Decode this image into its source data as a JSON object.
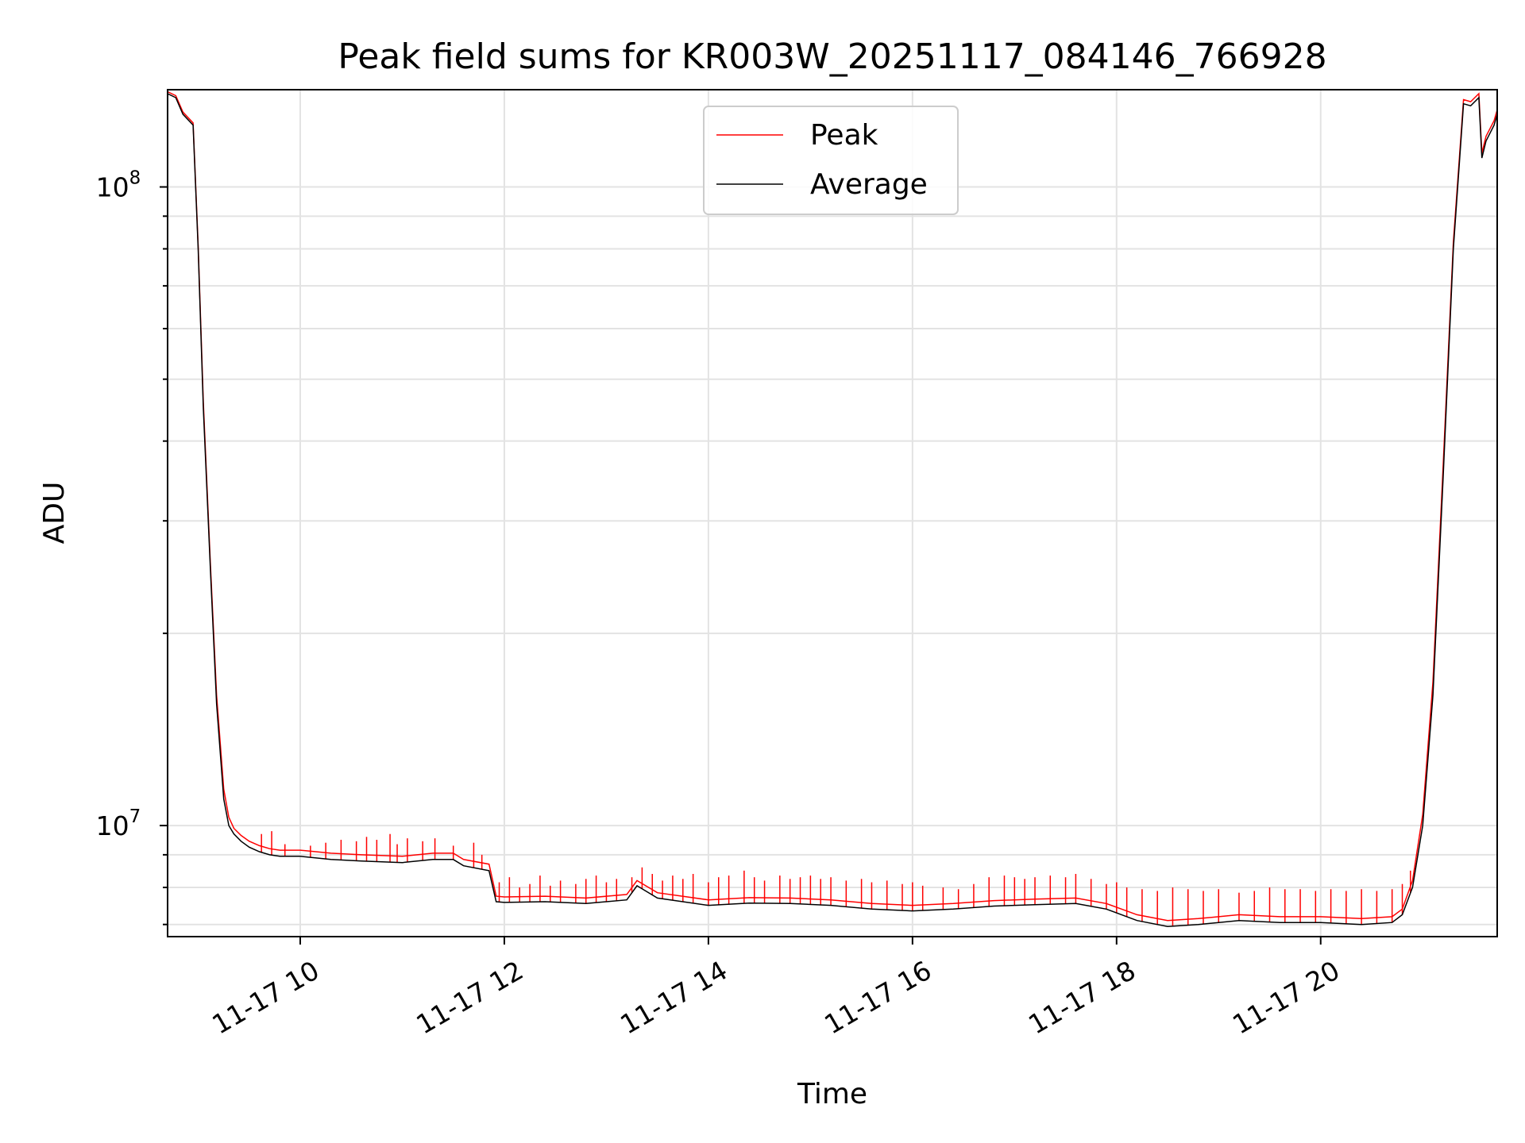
{
  "chart_data": {
    "type": "line",
    "title": "Peak field sums for KR003W_20251117_084146_766928",
    "xlabel": "Time",
    "ylabel": "ADU",
    "yscale": "log",
    "grid": true,
    "xlim": [
      8.7,
      21.73
    ],
    "ylim": [
      6700000,
      142000000
    ],
    "x_ticks": [
      {
        "value": 10,
        "label": "11-17 10"
      },
      {
        "value": 12,
        "label": "11-17 12"
      },
      {
        "value": 14,
        "label": "11-17 14"
      },
      {
        "value": 16,
        "label": "11-17 16"
      },
      {
        "value": 18,
        "label": "11-17 18"
      },
      {
        "value": 20,
        "label": "11-17 20"
      }
    ],
    "y_major_ticks": [
      {
        "value": 10000000,
        "base": "10",
        "exp": "7"
      },
      {
        "value": 100000000,
        "base": "10",
        "exp": "8"
      }
    ],
    "y_minor_ticks": [
      7000000,
      8000000,
      9000000,
      20000000,
      30000000,
      40000000,
      50000000,
      60000000,
      70000000,
      80000000,
      90000000
    ],
    "legend": {
      "position": "top-center",
      "entries": [
        "Peak",
        "Average"
      ]
    },
    "series": [
      {
        "name": "Average",
        "color": "#000000",
        "x": [
          8.7,
          8.78,
          8.85,
          8.95,
          9.0,
          9.05,
          9.12,
          9.18,
          9.25,
          9.3,
          9.35,
          9.42,
          9.5,
          9.6,
          9.7,
          9.8,
          10.0,
          10.3,
          10.6,
          11.0,
          11.3,
          11.5,
          11.6,
          11.85,
          11.92,
          12.0,
          12.4,
          12.8,
          13.2,
          13.3,
          13.5,
          14.0,
          14.4,
          14.8,
          15.2,
          15.6,
          16.0,
          16.4,
          16.8,
          17.2,
          17.6,
          17.9,
          18.2,
          18.5,
          18.8,
          19.2,
          19.6,
          20.0,
          20.4,
          20.7,
          20.8,
          20.9,
          21.0,
          21.1,
          21.2,
          21.3,
          21.4,
          21.47,
          21.55,
          21.58,
          21.62,
          21.7,
          21.73
        ],
        "y": [
          140000000,
          138000000,
          130000000,
          125000000,
          80000000,
          45000000,
          25000000,
          15500000,
          11000000,
          10000000,
          9700000,
          9450000,
          9250000,
          9100000,
          9000000,
          8950000,
          8950000,
          8850000,
          8800000,
          8750000,
          8850000,
          8850000,
          8650000,
          8500000,
          7600000,
          7580000,
          7600000,
          7550000,
          7650000,
          8050000,
          7700000,
          7500000,
          7560000,
          7550000,
          7500000,
          7400000,
          7350000,
          7400000,
          7480000,
          7520000,
          7550000,
          7400000,
          7100000,
          6950000,
          7000000,
          7100000,
          7050000,
          7050000,
          7000000,
          7050000,
          7250000,
          8000000,
          10000000,
          16000000,
          35000000,
          80000000,
          135000000,
          134000000,
          138000000,
          111000000,
          118000000,
          125000000,
          130000000
        ]
      },
      {
        "name": "Peak",
        "color": "#ff0000",
        "x": [
          8.7,
          8.78,
          8.85,
          8.95,
          9.0,
          9.05,
          9.12,
          9.18,
          9.25,
          9.3,
          9.35,
          9.42,
          9.5,
          9.6,
          9.7,
          9.8,
          10.0,
          10.3,
          10.6,
          11.0,
          11.3,
          11.5,
          11.6,
          11.85,
          11.92,
          12.0,
          12.4,
          12.8,
          13.2,
          13.3,
          13.5,
          14.0,
          14.4,
          14.8,
          15.2,
          15.6,
          16.0,
          16.4,
          16.8,
          17.2,
          17.6,
          17.9,
          18.2,
          18.5,
          18.8,
          19.2,
          19.6,
          20.0,
          20.4,
          20.7,
          20.8,
          20.9,
          21.0,
          21.1,
          21.2,
          21.3,
          21.4,
          21.47,
          21.55,
          21.58,
          21.62,
          21.7,
          21.73
        ],
        "y": [
          141000000,
          139000000,
          131000000,
          126000000,
          81000000,
          46000000,
          25500000,
          16000000,
          11400000,
          10300000,
          9900000,
          9650000,
          9450000,
          9300000,
          9200000,
          9150000,
          9150000,
          9050000,
          9000000,
          8950000,
          9050000,
          9050000,
          8850000,
          8700000,
          7750000,
          7730000,
          7750000,
          7700000,
          7800000,
          8200000,
          7850000,
          7650000,
          7710000,
          7700000,
          7650000,
          7550000,
          7500000,
          7550000,
          7630000,
          7670000,
          7700000,
          7550000,
          7250000,
          7100000,
          7150000,
          7250000,
          7200000,
          7200000,
          7150000,
          7200000,
          7400000,
          8200000,
          10400000,
          16800000,
          36500000,
          82000000,
          137000000,
          136000000,
          140000000,
          113000000,
          120000000,
          127000000,
          132000000
        ]
      }
    ],
    "peak_spikes": [
      [
        9.62,
        9700000
      ],
      [
        9.72,
        9800000
      ],
      [
        9.85,
        9350000
      ],
      [
        10.1,
        9300000
      ],
      [
        10.25,
        9400000
      ],
      [
        10.4,
        9500000
      ],
      [
        10.55,
        9450000
      ],
      [
        10.65,
        9600000
      ],
      [
        10.75,
        9500000
      ],
      [
        10.88,
        9700000
      ],
      [
        10.95,
        9350000
      ],
      [
        11.05,
        9550000
      ],
      [
        11.2,
        9450000
      ],
      [
        11.32,
        9550000
      ],
      [
        11.5,
        9300000
      ],
      [
        11.7,
        9400000
      ],
      [
        11.78,
        9000000
      ],
      [
        11.95,
        8150000
      ],
      [
        12.05,
        8300000
      ],
      [
        12.15,
        8000000
      ],
      [
        12.25,
        8100000
      ],
      [
        12.35,
        8350000
      ],
      [
        12.45,
        8050000
      ],
      [
        12.55,
        8200000
      ],
      [
        12.7,
        8100000
      ],
      [
        12.8,
        8250000
      ],
      [
        12.9,
        8350000
      ],
      [
        13.0,
        8150000
      ],
      [
        13.1,
        8250000
      ],
      [
        13.25,
        8300000
      ],
      [
        13.35,
        8600000
      ],
      [
        13.45,
        8400000
      ],
      [
        13.55,
        8200000
      ],
      [
        13.65,
        8350000
      ],
      [
        13.75,
        8250000
      ],
      [
        13.85,
        8400000
      ],
      [
        14.0,
        8150000
      ],
      [
        14.1,
        8300000
      ],
      [
        14.2,
        8350000
      ],
      [
        14.35,
        8500000
      ],
      [
        14.45,
        8300000
      ],
      [
        14.55,
        8200000
      ],
      [
        14.7,
        8350000
      ],
      [
        14.8,
        8250000
      ],
      [
        14.9,
        8300000
      ],
      [
        15.0,
        8350000
      ],
      [
        15.1,
        8250000
      ],
      [
        15.2,
        8300000
      ],
      [
        15.35,
        8200000
      ],
      [
        15.5,
        8250000
      ],
      [
        15.6,
        8150000
      ],
      [
        15.75,
        8200000
      ],
      [
        15.9,
        8100000
      ],
      [
        16.0,
        8150000
      ],
      [
        16.1,
        8050000
      ],
      [
        16.3,
        8000000
      ],
      [
        16.45,
        7950000
      ],
      [
        16.6,
        8100000
      ],
      [
        16.75,
        8300000
      ],
      [
        16.9,
        8350000
      ],
      [
        17.0,
        8300000
      ],
      [
        17.1,
        8250000
      ],
      [
        17.2,
        8300000
      ],
      [
        17.35,
        8350000
      ],
      [
        17.5,
        8300000
      ],
      [
        17.6,
        8400000
      ],
      [
        17.75,
        8250000
      ],
      [
        17.9,
        8100000
      ],
      [
        18.0,
        8150000
      ],
      [
        18.1,
        8000000
      ],
      [
        18.25,
        7950000
      ],
      [
        18.4,
        7900000
      ],
      [
        18.55,
        8000000
      ],
      [
        18.7,
        7950000
      ],
      [
        18.85,
        7900000
      ],
      [
        19.0,
        7950000
      ],
      [
        19.2,
        7850000
      ],
      [
        19.35,
        7900000
      ],
      [
        19.5,
        8000000
      ],
      [
        19.65,
        7950000
      ],
      [
        19.8,
        7950000
      ],
      [
        19.95,
        7900000
      ],
      [
        20.1,
        7950000
      ],
      [
        20.25,
        7900000
      ],
      [
        20.4,
        7950000
      ],
      [
        20.55,
        7900000
      ],
      [
        20.7,
        7950000
      ],
      [
        20.8,
        8100000
      ],
      [
        20.88,
        8500000
      ]
    ]
  }
}
